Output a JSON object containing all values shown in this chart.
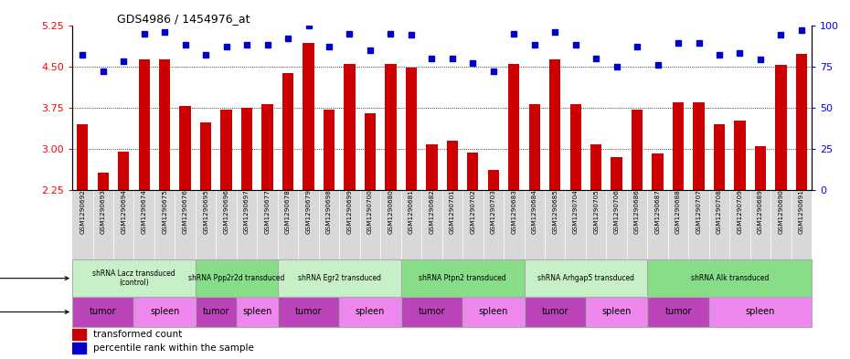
{
  "title": "GDS4986 / 1454976_at",
  "sample_ids": [
    "GSM1290692",
    "GSM1290693",
    "GSM1290694",
    "GSM1290674",
    "GSM1290675",
    "GSM1290676",
    "GSM1290695",
    "GSM1290696",
    "GSM1290697",
    "GSM1290677",
    "GSM1290678",
    "GSM1290679",
    "GSM1290698",
    "GSM1290699",
    "GSM1290700",
    "GSM1290680",
    "GSM1290681",
    "GSM1290682",
    "GSM1290701",
    "GSM1290702",
    "GSM1290703",
    "GSM1290683",
    "GSM1290684",
    "GSM1290685",
    "GSM1290704",
    "GSM1290705",
    "GSM1290706",
    "GSM1290686",
    "GSM1290687",
    "GSM1290688",
    "GSM1290707",
    "GSM1290708",
    "GSM1290709",
    "GSM1290689",
    "GSM1290690",
    "GSM1290691"
  ],
  "bar_values": [
    3.45,
    2.57,
    2.95,
    4.62,
    4.62,
    3.78,
    3.48,
    3.72,
    3.75,
    3.82,
    4.38,
    4.92,
    3.72,
    4.55,
    3.65,
    4.55,
    4.48,
    3.08,
    3.15,
    2.93,
    2.62,
    4.55,
    3.82,
    4.62,
    3.82,
    3.08,
    2.85,
    3.72,
    2.92,
    3.85,
    3.85,
    3.45,
    3.52,
    3.05,
    4.52,
    4.72
  ],
  "percentile_values": [
    82,
    72,
    78,
    95,
    96,
    88,
    82,
    87,
    88,
    88,
    92,
    100,
    87,
    95,
    85,
    95,
    94,
    80,
    80,
    77,
    72,
    95,
    88,
    96,
    88,
    80,
    75,
    87,
    76,
    89,
    89,
    82,
    83,
    79,
    94,
    97
  ],
  "protocols": [
    {
      "label": "shRNA Lacz transduced\n(control)",
      "start": 0,
      "end": 6,
      "color": "#c8f0c8"
    },
    {
      "label": "shRNA Ppp2r2d transduced",
      "start": 6,
      "end": 10,
      "color": "#88dd88"
    },
    {
      "label": "shRNA Egr2 transduced",
      "start": 10,
      "end": 16,
      "color": "#c8f0c8"
    },
    {
      "label": "shRNA Ptpn2 transduced",
      "start": 16,
      "end": 22,
      "color": "#88dd88"
    },
    {
      "label": "shRNA Arhgap5 transduced",
      "start": 22,
      "end": 28,
      "color": "#c8f0c8"
    },
    {
      "label": "shRNA Alk transduced",
      "start": 28,
      "end": 36,
      "color": "#88dd88"
    }
  ],
  "tissues": [
    {
      "label": "tumor",
      "start": 0,
      "end": 3,
      "color": "#bb44bb"
    },
    {
      "label": "spleen",
      "start": 3,
      "end": 6,
      "color": "#ee88ee"
    },
    {
      "label": "tumor",
      "start": 6,
      "end": 8,
      "color": "#bb44bb"
    },
    {
      "label": "spleen",
      "start": 8,
      "end": 10,
      "color": "#ee88ee"
    },
    {
      "label": "tumor",
      "start": 10,
      "end": 13,
      "color": "#bb44bb"
    },
    {
      "label": "spleen",
      "start": 13,
      "end": 16,
      "color": "#ee88ee"
    },
    {
      "label": "tumor",
      "start": 16,
      "end": 19,
      "color": "#bb44bb"
    },
    {
      "label": "spleen",
      "start": 19,
      "end": 22,
      "color": "#ee88ee"
    },
    {
      "label": "tumor",
      "start": 22,
      "end": 25,
      "color": "#bb44bb"
    },
    {
      "label": "spleen",
      "start": 25,
      "end": 28,
      "color": "#ee88ee"
    },
    {
      "label": "tumor",
      "start": 28,
      "end": 31,
      "color": "#bb44bb"
    },
    {
      "label": "spleen",
      "start": 31,
      "end": 36,
      "color": "#ee88ee"
    }
  ],
  "ylim_left": [
    2.25,
    5.25
  ],
  "ylim_right": [
    0,
    100
  ],
  "yticks_left": [
    2.25,
    3.0,
    3.75,
    4.5,
    5.25
  ],
  "yticks_right": [
    0,
    25,
    50,
    75,
    100
  ],
  "bar_color": "#cc0000",
  "dot_color": "#0000cc",
  "bg_gray": "#d8d8d8",
  "background_color": "#ffffff",
  "legend_red": "transformed count",
  "legend_blue": "percentile rank within the sample"
}
